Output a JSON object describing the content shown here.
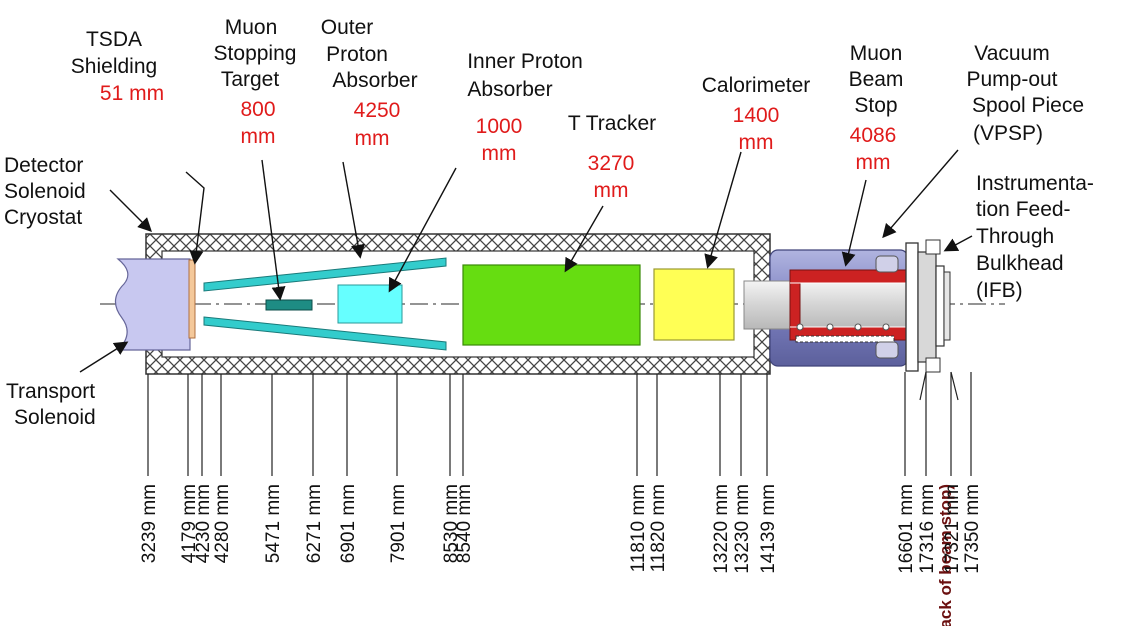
{
  "labels": {
    "tsda_line1": "TSDA",
    "tsda_line2": "Shielding",
    "tsda_len": "51 mm",
    "target_line1": "Muon",
    "target_line2": "Stopping",
    "target_line3": "Target",
    "target_len1": "800",
    "target_len2": "mm",
    "opa_line1": "Outer",
    "opa_line2": "Proton",
    "opa_line3": "Absorber",
    "opa_len1": "4250",
    "opa_len2": "mm",
    "ipa_line1": "Inner Proton",
    "ipa_line2": "Absorber",
    "ipa_len1": "1000",
    "ipa_len2": "mm",
    "tracker_line1": "T Tracker",
    "tracker_len1": "3270",
    "tracker_len2": "mm",
    "calo_line1": "Calorimeter",
    "calo_len1": "1400",
    "calo_len2": "mm",
    "mbs_line1": "Muon",
    "mbs_line2": "Beam",
    "mbs_line3": "Stop",
    "mbs_len1": "4086",
    "mbs_len2": "mm",
    "vpsp_line1": "Vacuum",
    "vpsp_line2": "Pump-out",
    "vpsp_line3": "Spool Piece",
    "vpsp_line4": "(VPSP)",
    "cryo_line1": "Detector",
    "cryo_line2": "Solenoid",
    "cryo_line3": "Cryostat",
    "ifb_line1": "Instrumenta-",
    "ifb_line2": "tion Feed-",
    "ifb_line3": "Through",
    "ifb_line4": "Bulkhead",
    "ifb_line5": "(IFB)",
    "ts_line1": "Transport",
    "ts_line2": "Solenoid"
  },
  "positions": [
    "3239 mm",
    "4179 mm",
    "4230 mm",
    "4280 mm",
    "5471 mm",
    "6271 mm",
    "6901 mm",
    "7901 mm",
    "8530 mm",
    "8540 mm",
    "11810 mm",
    "11820 mm",
    "13220 mm",
    "13230 mm",
    "14139 mm",
    "16601 mm",
    "17316 mm",
    "(back of beam stop)",
    "17321 mm",
    "17350 mm"
  ],
  "colors": {
    "length_text": "#e01b1b",
    "transport_solenoid": "#c8c8f0",
    "tsda": "#f4c89a",
    "stopping_target": "#1e8c84",
    "outer_absorber": "#33cccc",
    "inner_absorber": "#66ffff",
    "tracker": "#66dd11",
    "calorimeter": "#ffff55",
    "beam_stop": "#cc2222",
    "beam_stop_shell": "#8a8fc8",
    "cryostat_wall": "#555555"
  }
}
